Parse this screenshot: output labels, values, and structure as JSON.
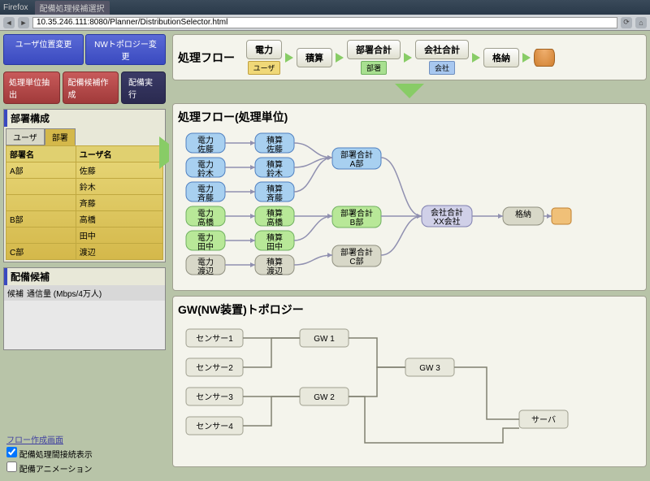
{
  "browser": {
    "app_name": "Firefox",
    "tab_title": "配備処理候補選択",
    "url": "10.35.246.111:8080/Planner/DistributionSelector.html"
  },
  "left": {
    "top_buttons": {
      "user_pos": "ユーザ位置変更",
      "nw_topo": "NWトポロジー変更"
    },
    "action_buttons": {
      "extract": "処理単位抽出",
      "create": "配備候補作成",
      "exec": "配備実行"
    },
    "dept_panel": {
      "title": "部署構成",
      "tabs": {
        "user": "ユーザ",
        "dept": "部署"
      },
      "headers": {
        "dept": "部署名",
        "user": "ユーザ名"
      },
      "rows": [
        {
          "dept": "A部",
          "users": [
            "佐藤",
            "鈴木",
            "斉藤"
          ]
        },
        {
          "dept": "B部",
          "users": [
            "高橋",
            "田中"
          ]
        },
        {
          "dept": "C部",
          "users": [
            "渡辺"
          ]
        }
      ]
    },
    "candidate_panel": {
      "title": "配備候補",
      "col1": "候補",
      "col2": "通信量 (Mbps/4万人)"
    },
    "footer": {
      "link": "フロー作成画面",
      "chk1": "配備処理間接続表示",
      "chk2": "配備アニメーション"
    }
  },
  "flow": {
    "title": "処理フロー",
    "stages": [
      {
        "name": "電力",
        "sub": "ユーザ",
        "sub_cls": "tag-y"
      },
      {
        "name": "積算",
        "sub": null
      },
      {
        "name": "部署合計",
        "sub": "部署",
        "sub_cls": "tag-g"
      },
      {
        "name": "会社合計",
        "sub": "会社",
        "sub_cls": "tag-b"
      },
      {
        "name": "格納",
        "sub": null
      }
    ]
  },
  "proc": {
    "title": "処理フロー(処理単位)",
    "users": [
      "佐藤",
      "鈴木",
      "斉藤",
      "高橋",
      "田中",
      "渡辺"
    ],
    "power_label": "電力",
    "sum_label": "積算",
    "dept_nodes": [
      {
        "label1": "部署合計",
        "label2": "A部"
      },
      {
        "label1": "部署合計",
        "label2": "B部"
      },
      {
        "label1": "部署合計",
        "label2": "C部"
      }
    ],
    "company": {
      "l1": "会社合計",
      "l2": "XX会社"
    },
    "store": "格納",
    "colors": {
      "blue_fill": "#a8d0f0",
      "blue_stroke": "#5080c0",
      "green_fill": "#b8e898",
      "green_stroke": "#70b060",
      "gray_fill": "#d8d8c8",
      "gray_stroke": "#909080",
      "lav_fill": "#d0d0e8",
      "lav_stroke": "#8080b0",
      "orange_fill": "#f0c078",
      "orange_stroke": "#c08030",
      "link": "#9090b0"
    }
  },
  "gw": {
    "title": "GW(NW装置)トポロジー",
    "sensors": [
      "センサー1",
      "センサー2",
      "センサー3",
      "センサー4"
    ],
    "gws": [
      "GW 1",
      "GW 2",
      "GW 3"
    ],
    "server": "サーバ",
    "node_fill": "#e8e8dc",
    "node_stroke": "#a0a090",
    "link": "#808070"
  }
}
